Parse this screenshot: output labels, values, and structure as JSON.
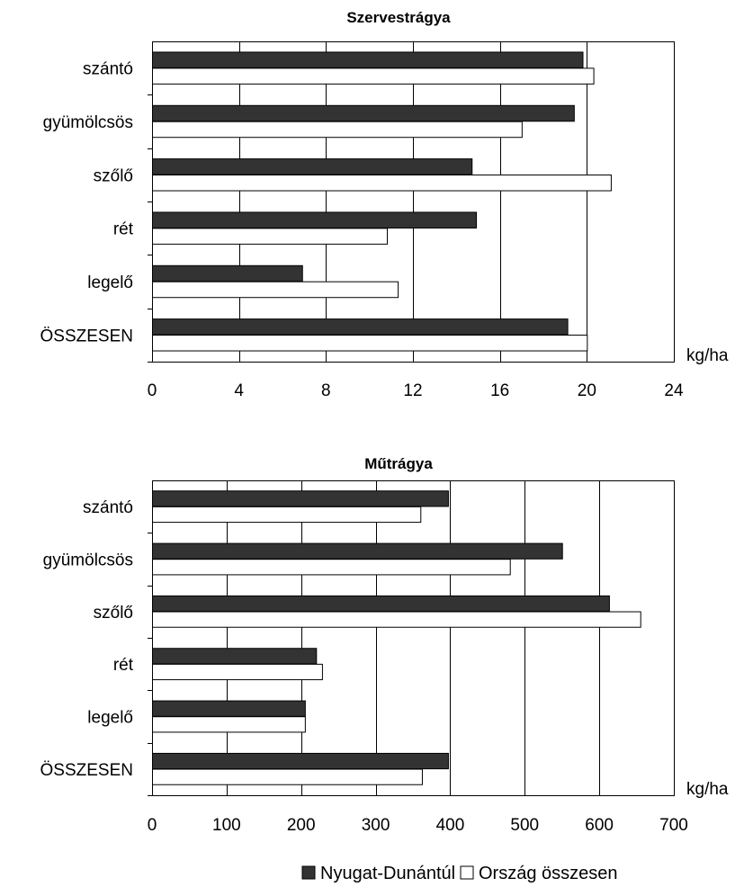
{
  "colors": {
    "series_dark": "#333333",
    "series_light": "#ffffff",
    "outline": "#000000"
  },
  "legend": {
    "items": [
      {
        "label": "Nyugat-Dunántúl",
        "color": "#333333"
      },
      {
        "label": "Ország összesen",
        "color": "#ffffff"
      }
    ]
  },
  "chart_data": [
    {
      "type": "bar",
      "orientation": "horizontal",
      "title": "Szervestrágya",
      "unit": "kg/ha",
      "categories": [
        "szántó",
        "gyümölcsös",
        "szőlő",
        "rét",
        "legelő",
        "ÖSSZESEN"
      ],
      "series": [
        {
          "name": "Nyugat-Dunántúl",
          "values": [
            19.8,
            19.4,
            14.7,
            14.9,
            6.9,
            19.1
          ]
        },
        {
          "name": "Ország összesen",
          "values": [
            20.3,
            17.0,
            21.1,
            10.8,
            11.3,
            20.0
          ]
        }
      ],
      "xlim": [
        0,
        24
      ],
      "ticks": [
        0,
        4,
        8,
        12,
        16,
        20,
        24
      ],
      "grid": true,
      "legend": "bottom"
    },
    {
      "type": "bar",
      "orientation": "horizontal",
      "title": "Műtrágya",
      "unit": "kg/ha",
      "categories": [
        "szántó",
        "gyümölcsös",
        "szőlő",
        "rét",
        "legelő",
        "ÖSSZESEN"
      ],
      "series": [
        {
          "name": "Nyugat-Dunántúl",
          "values": [
            397,
            550,
            613,
            220,
            205,
            397
          ]
        },
        {
          "name": "Ország összesen",
          "values": [
            360,
            480,
            655,
            228,
            205,
            362
          ]
        }
      ],
      "xlim": [
        0,
        700
      ],
      "ticks": [
        0,
        100,
        200,
        300,
        400,
        500,
        600,
        700
      ],
      "grid": true,
      "legend": "bottom"
    }
  ]
}
